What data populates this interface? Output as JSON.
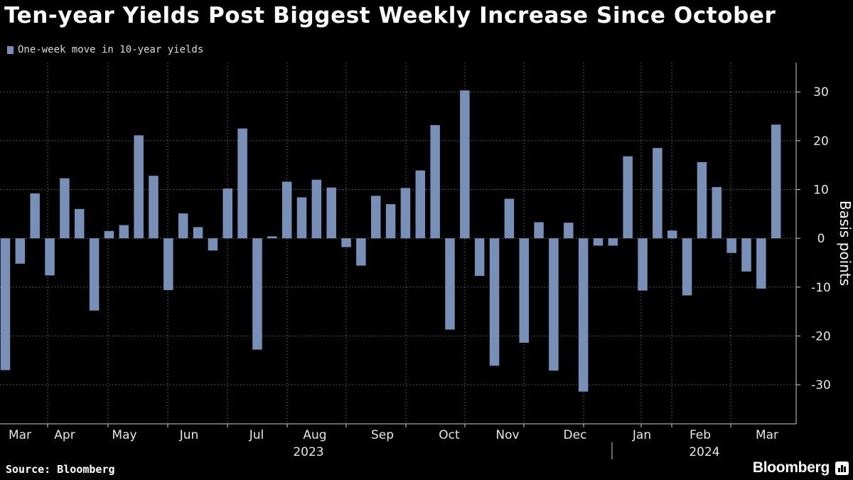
{
  "title": "Ten-year Yields Post Biggest Weekly Increase Since October",
  "source": "Source: Bloomberg",
  "brand": "Bloomberg",
  "brand_icon": "bloomberg-chart-icon",
  "colors": {
    "background": "#000000",
    "bar": "#7890b8",
    "grid": "#6a6a6a",
    "text": "#ffffff"
  },
  "chart_data": {
    "type": "bar",
    "title": "Ten-year Yields Post Biggest Weekly Increase Since October",
    "ylabel": "Basis points",
    "xlabel": "",
    "ylim": [
      -38,
      36
    ],
    "yticks": [
      30,
      20,
      10,
      0,
      -10,
      -20,
      -30
    ],
    "ytick_labels": [
      "30",
      "20",
      "10",
      "0",
      "-10",
      "-20",
      "-30"
    ],
    "grid": true,
    "legend_position": "top-left",
    "series": [
      {
        "name": "One-week move in 10-year yields",
        "values": [
          -27,
          -5.2,
          9.2,
          -7.6,
          12.3,
          6,
          -14.8,
          1.5,
          2.7,
          21.1,
          12.8,
          -10.6,
          5.1,
          2.3,
          -2.5,
          10.2,
          22.5,
          -22.8,
          0.4,
          11.6,
          8.4,
          12,
          10.4,
          -1.8,
          -5.6,
          8.7,
          7,
          10.3,
          13.9,
          23.2,
          -18.7,
          30.3,
          -7.7,
          -26.1,
          8.1,
          -21.4,
          3.3,
          -27.1,
          3.2,
          -31.4,
          -1.5,
          -1.5,
          16.8,
          -10.7,
          18.5,
          1.6,
          -11.7,
          15.6,
          10.5,
          -3,
          -6.8,
          -10.3,
          23.3
        ]
      }
    ],
    "month_labels": [
      "Mar",
      "Apr",
      "May",
      "Jun",
      "Jul",
      "Aug",
      "Sep",
      "Oct",
      "Nov",
      "Dec",
      "Jan",
      "Feb",
      "Mar"
    ],
    "years": [
      "2023",
      "2024"
    ]
  }
}
